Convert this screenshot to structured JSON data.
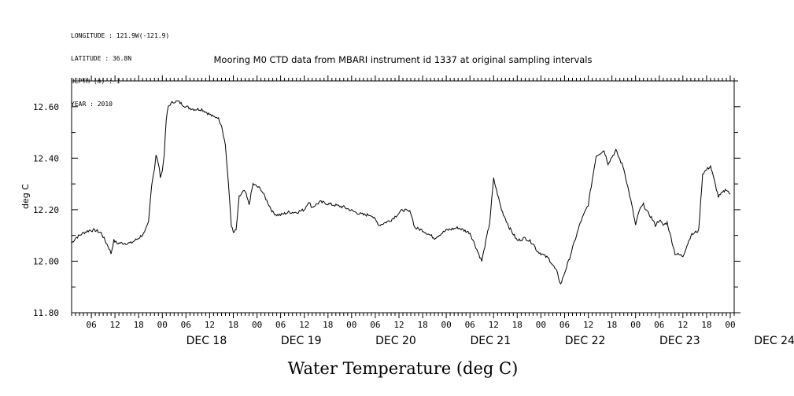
{
  "meta": {
    "lines": [
      "LONGITUDE : 121.9W(-121.9)",
      "LATITUDE : 36.8N",
      "DEPTH (m) : 1",
      "YEAR : 2010"
    ]
  },
  "chart_data": {
    "type": "line",
    "title": "Mooring M0 CTD data from MBARI instrument id 1337 at original sampling intervals",
    "xlabel": "Water Temperature (deg C)",
    "ylabel": "deg C",
    "ylim": [
      11.8,
      12.7
    ],
    "yticks": [
      "12.60",
      "12.40",
      "12.20",
      "12.00",
      "11.80"
    ],
    "y_tick_values": [
      12.6,
      12.4,
      12.2,
      12.0,
      11.8
    ],
    "xlim_hours": [
      -23,
      145
    ],
    "x_hour_ticks": [
      "06",
      "12",
      "18",
      "00",
      "06",
      "12",
      "18",
      "00",
      "06",
      "12",
      "18",
      "00",
      "06",
      "12",
      "18",
      "00",
      "06",
      "12",
      "18",
      "00",
      "06",
      "12",
      "18",
      "00",
      "06",
      "12",
      "18",
      "00"
    ],
    "date_labels": [
      "DEC 18",
      "DEC 19",
      "DEC 20",
      "DEC 21",
      "DEC 22",
      "DEC 23",
      "DEC 24"
    ],
    "grid": false,
    "series": [
      {
        "x": [
          -23,
          -22,
          -20,
          -18.5,
          -17,
          -15.5,
          -14.5,
          -13.5,
          -13,
          -12.3,
          -11.5,
          -10,
          -8,
          -6,
          -4.5,
          -3.5,
          -2.7,
          -2,
          -1.6,
          -1,
          -0.5,
          0,
          0.5,
          1,
          1.5,
          2,
          3,
          4,
          6,
          8,
          10,
          12,
          13,
          14,
          15,
          16,
          17,
          17.5,
          18,
          18.7,
          19.5,
          20.5,
          21,
          22,
          23,
          25,
          27,
          28,
          29,
          30,
          32,
          34,
          36,
          37,
          38,
          40,
          43,
          46,
          49,
          51,
          53,
          55,
          58,
          61,
          63,
          64,
          66,
          69,
          72,
          75,
          78,
          81,
          83,
          84,
          86,
          88,
          90,
          92,
          94,
          95,
          96,
          98,
          100,
          101,
          103,
          106,
          108,
          110,
          112,
          113,
          115,
          117,
          119,
          120,
          121,
          122,
          123,
          124,
          125,
          126,
          127,
          128,
          130,
          132,
          134,
          136,
          137,
          139,
          141,
          143,
          144
        ],
        "values": [
          12.07,
          12.09,
          12.11,
          12.12,
          12.12,
          12.11,
          12.08,
          12.05,
          12.03,
          12.08,
          12.07,
          12.07,
          12.07,
          12.09,
          12.11,
          12.15,
          12.3,
          12.36,
          12.41,
          12.38,
          12.33,
          12.35,
          12.42,
          12.55,
          12.6,
          12.61,
          12.62,
          12.62,
          12.6,
          12.59,
          12.59,
          12.57,
          12.56,
          12.56,
          12.53,
          12.45,
          12.25,
          12.14,
          12.11,
          12.12,
          12.25,
          12.27,
          12.27,
          12.22,
          12.3,
          12.28,
          12.22,
          12.19,
          12.18,
          12.18,
          12.19,
          12.19,
          12.2,
          12.23,
          12.21,
          12.23,
          12.22,
          12.21,
          12.19,
          12.18,
          12.18,
          12.14,
          12.16,
          12.2,
          12.19,
          12.13,
          12.12,
          12.09,
          12.12,
          12.13,
          12.11,
          12.0,
          12.15,
          12.32,
          12.2,
          12.13,
          12.08,
          12.09,
          12.07,
          12.04,
          12.03,
          12.01,
          11.96,
          11.91,
          12.0,
          12.15,
          12.22,
          12.41,
          12.43,
          12.38,
          12.43,
          12.36,
          12.22,
          12.14,
          12.2,
          12.22,
          12.19,
          12.17,
          12.14,
          12.16,
          12.14,
          12.15,
          12.03,
          12.02,
          12.1,
          12.12,
          12.34,
          12.37,
          12.25,
          12.28,
          12.26
        ]
      }
    ]
  }
}
